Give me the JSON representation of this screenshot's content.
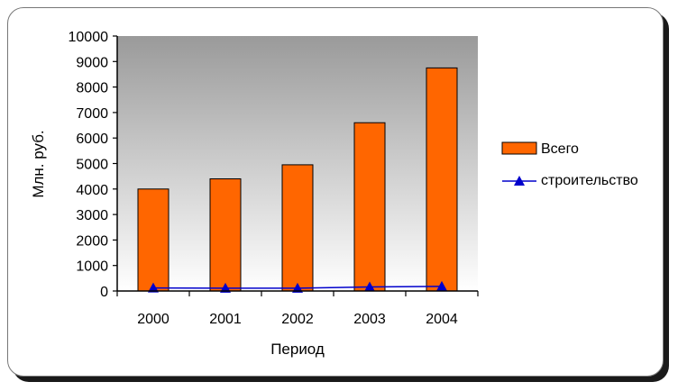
{
  "chart_data": {
    "type": "bar",
    "categories": [
      "2000",
      "2001",
      "2002",
      "2003",
      "2004"
    ],
    "series": [
      {
        "name": "Всего",
        "type": "bar",
        "values": [
          4000,
          4400,
          4950,
          6600,
          8750
        ],
        "color": "#ff6600"
      },
      {
        "name": "строительство",
        "type": "line",
        "values": [
          120,
          110,
          110,
          160,
          180
        ],
        "color": "#0000cc",
        "marker": "triangle"
      }
    ],
    "title": "",
    "xlabel": "Период",
    "ylabel": "Млн. руб.",
    "ylim": [
      0,
      10000
    ],
    "yticks": [
      "0",
      "1000",
      "2000",
      "3000",
      "4000",
      "5000",
      "6000",
      "7000",
      "8000",
      "9000",
      "10000"
    ],
    "grid": false,
    "legend_position": "right",
    "plot_background": "gradient gray"
  }
}
